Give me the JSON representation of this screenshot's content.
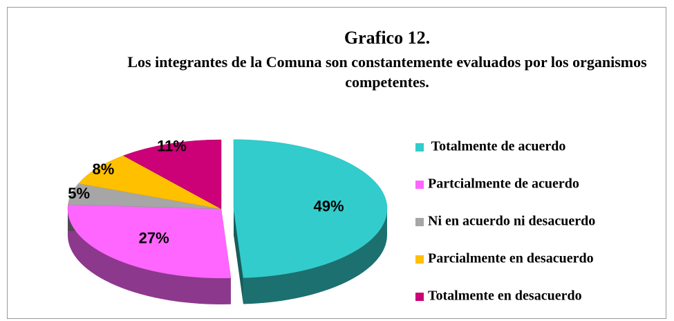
{
  "chart_data": {
    "type": "pie",
    "title": "Grafico 12.",
    "subtitle": "Los integrantes de la Comuna son constantemente evaluados por los organismos competentes.",
    "categories": [
      " Totalmente de acuerdo",
      "Partcialmente de acuerdo",
      "Ni en acuerdo ni desacuerdo",
      "Parcialmente en desacuerdo",
      "Totalmente en desacuerdo"
    ],
    "values": [
      49,
      27,
      5,
      8,
      11
    ],
    "value_labels": [
      "49%",
      "27%",
      "5%",
      "8%",
      "11%"
    ],
    "colors": [
      "#33cccc",
      "#ff66ff",
      "#a6a6a6",
      "#ffc000",
      "#cc0077"
    ],
    "legend": "right"
  }
}
